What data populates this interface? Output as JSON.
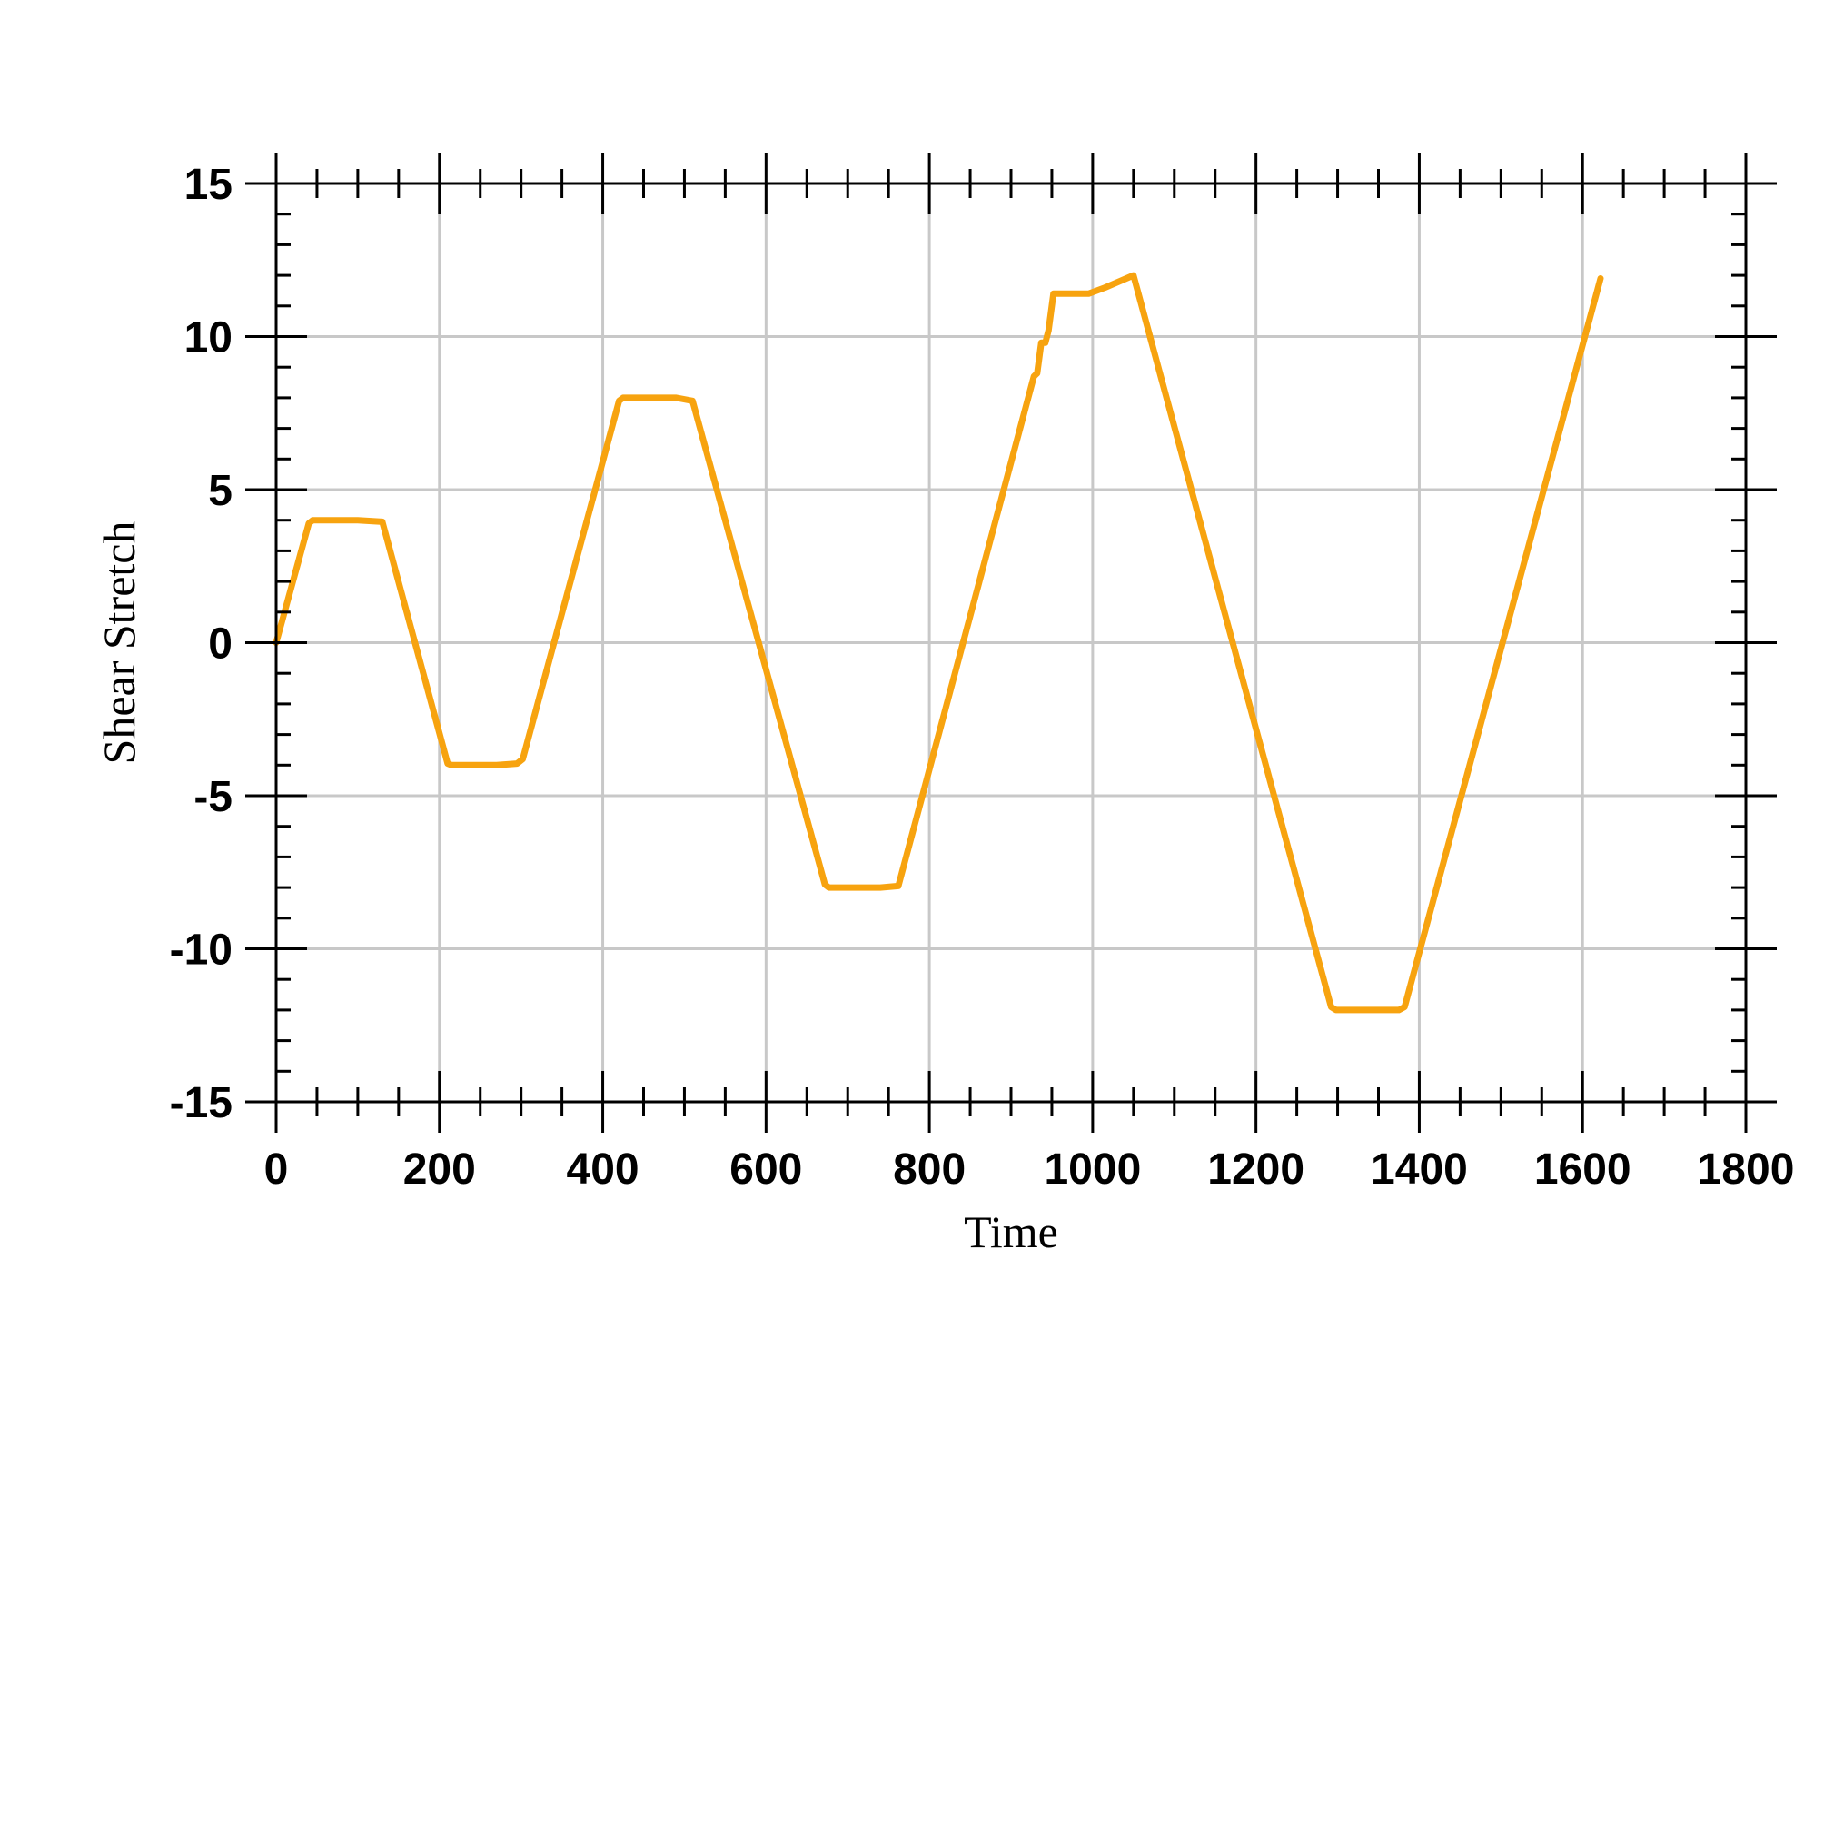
{
  "chart_data": {
    "type": "line",
    "title": "",
    "xlabel": "Time",
    "ylabel": "Shear Stretch",
    "xlim": [
      0,
      1800
    ],
    "ylim": [
      -15,
      15
    ],
    "xticks": [
      "0",
      "200",
      "400",
      "600",
      "800",
      "1000",
      "1200",
      "1400",
      "1600",
      "1800"
    ],
    "yticks": [
      "15",
      "10",
      "5",
      "0",
      "-5",
      "-10",
      "-15"
    ],
    "grid": true,
    "series": [
      {
        "color": "#F7A30F",
        "x": [
          0,
          40,
          45,
          100,
          130,
          210,
          215,
          270,
          295,
          302,
          420,
          425,
          490,
          510,
          672,
          677,
          740,
          762,
          928,
          932,
          937,
          942,
          946,
          952,
          995,
          1015,
          1050,
          1292,
          1298,
          1375,
          1382,
          1622
        ],
        "y": [
          0,
          3.9,
          4.0,
          4.0,
          3.95,
          -3.95,
          -4.0,
          -4.0,
          -3.95,
          -3.8,
          7.9,
          8.0,
          8.0,
          7.9,
          -7.9,
          -8.0,
          -8.0,
          -7.95,
          8.7,
          8.8,
          9.8,
          9.8,
          10.2,
          11.4,
          11.4,
          11.6,
          12.0,
          -11.9,
          -12.0,
          -12.0,
          -11.9,
          11.9
        ]
      }
    ]
  }
}
